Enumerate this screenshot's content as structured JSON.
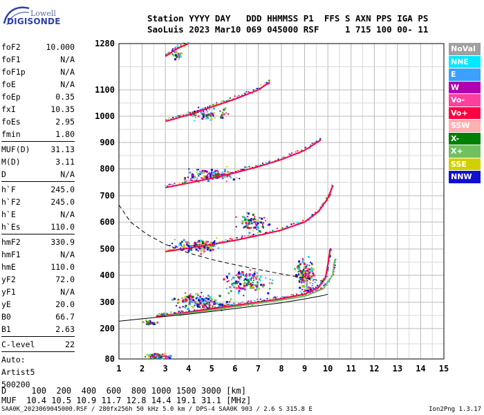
{
  "logo": {
    "line1": "Lowell",
    "line2": "DIGISONDE"
  },
  "header": {
    "row1": "Station YYYY DAY   DDD HHMMSS P1  FFS S AXN PPS IGA PS",
    "row2": "SaoLuis 2023 Mar10 069 045000 RSF     1 715 100 00- 11"
  },
  "params": [
    {
      "group": [
        {
          "name": "foF2",
          "value": "10.000"
        },
        {
          "name": "foF1",
          "value": "N/A"
        },
        {
          "name": "foF1p",
          "value": "N/A"
        },
        {
          "name": "foE",
          "value": "N/A"
        },
        {
          "name": "foEp",
          "value": "0.35"
        },
        {
          "name": "fxI",
          "value": "10.35"
        },
        {
          "name": "foEs",
          "value": "2.95"
        },
        {
          "name": "fmin",
          "value": "1.80"
        }
      ]
    },
    {
      "group": [
        {
          "name": "MUF(D)",
          "value": "31.13"
        },
        {
          "name": "M(D)",
          "value": "3.11"
        },
        {
          "name": "D",
          "value": "N/A"
        }
      ]
    },
    {
      "group": [
        {
          "name": "h`F",
          "value": "245.0"
        },
        {
          "name": "h`F2",
          "value": "245.0"
        },
        {
          "name": "h`E",
          "value": "N/A"
        },
        {
          "name": "h`Es",
          "value": "110.0"
        }
      ]
    },
    {
      "group": [
        {
          "name": "hmF2",
          "value": "330.9"
        },
        {
          "name": "hmF1",
          "value": "N/A"
        },
        {
          "name": "hmE",
          "value": "110.0"
        },
        {
          "name": "yF2",
          "value": "72.0"
        },
        {
          "name": "yF1",
          "value": "N/A"
        },
        {
          "name": "yE",
          "value": "20.0"
        },
        {
          "name": "B0",
          "value": "66.7"
        },
        {
          "name": "B1",
          "value": "2.63"
        }
      ]
    },
    {
      "group": [
        {
          "name": "C-level",
          "value": "22"
        }
      ]
    }
  ],
  "auto": {
    "line1": "Auto:",
    "line2": "Artist5",
    "line3": "500200"
  },
  "legend": [
    {
      "label": "NoVal",
      "color": "#a0a0a0"
    },
    {
      "label": "NNE",
      "color": "#00e8ff"
    },
    {
      "label": "E",
      "color": "#3ca0ff"
    },
    {
      "label": "W",
      "color": "#b000b0"
    },
    {
      "label": "Vo-",
      "color": "#ff40a0"
    },
    {
      "label": "Vo+",
      "color": "#ff0040"
    },
    {
      "label": "SSW",
      "color": "#ffb0b0"
    },
    {
      "label": "X-",
      "color": "#008000"
    },
    {
      "label": "X+",
      "color": "#70c060"
    },
    {
      "label": "SSE",
      "color": "#d0d000"
    },
    {
      "label": "NNW",
      "color": "#1010d0"
    }
  ],
  "muf": {
    "row1": "D     100  200  400  600  800 1000 1500 3000 [km]",
    "row2": "MUF  10.4 10.5 10.9 11.7 12.8 14.4 19.1 31.1 [MHz]"
  },
  "footer": "SAA0K_2023069045000.RSF / 280fx256h 50 kHz 5.0 km / DPS-4 SAA0K 903 / 2.6 S 315.8 E",
  "version": "Ion2Png 1.3.17",
  "chart_data": {
    "type": "scatter",
    "xlabel": "",
    "ylabel": "",
    "xlim": [
      1,
      15
    ],
    "ylim": [
      80,
      1280
    ],
    "x_ticks": [
      1,
      2,
      3,
      4,
      5,
      6,
      7,
      8,
      9,
      10,
      11,
      12,
      13,
      14,
      15
    ],
    "y_ticks": [
      80,
      200,
      300,
      400,
      500,
      600,
      700,
      800,
      900,
      1000,
      1100,
      1280
    ],
    "grid": true,
    "traces": [
      {
        "name": "",
        "color": "#ff0040",
        "points": [
          [
            2.6,
            245
          ],
          [
            3,
            250
          ],
          [
            4,
            262
          ],
          [
            5,
            275
          ],
          [
            6,
            288
          ],
          [
            7,
            300
          ],
          [
            8,
            313
          ],
          [
            9,
            330
          ],
          [
            9.6,
            355
          ],
          [
            9.9,
            390
          ],
          [
            10,
            440
          ],
          [
            10.1,
            500
          ]
        ]
      },
      {
        "name": "",
        "color": "#70c060",
        "points": [
          [
            3,
            248
          ],
          [
            4,
            258
          ],
          [
            5,
            270
          ],
          [
            6,
            283
          ],
          [
            7,
            296
          ],
          [
            8,
            308
          ],
          [
            9,
            322
          ],
          [
            9.8,
            350
          ],
          [
            10.2,
            400
          ],
          [
            10.3,
            460
          ]
        ]
      },
      {
        "name": "",
        "color": "#000000",
        "points": [
          [
            1,
            228
          ],
          [
            2,
            237
          ],
          [
            3,
            246
          ],
          [
            4,
            255
          ],
          [
            5,
            265
          ],
          [
            6,
            276
          ],
          [
            7,
            287
          ],
          [
            8,
            298
          ],
          [
            9,
            312
          ],
          [
            9.8,
            325
          ],
          [
            10,
            330
          ]
        ]
      },
      {
        "name": "",
        "color": "#000000",
        "dash": true,
        "points": [
          [
            1,
            665
          ],
          [
            1.5,
            600
          ],
          [
            2.2,
            555
          ],
          [
            3,
            517
          ],
          [
            4,
            485
          ],
          [
            5,
            460
          ],
          [
            6,
            440
          ],
          [
            7,
            422
          ],
          [
            8,
            405
          ],
          [
            9,
            390
          ],
          [
            9.8,
            378
          ]
        ]
      },
      {
        "name": "",
        "color": "#ff0040",
        "points": [
          [
            3,
            490
          ],
          [
            4,
            503
          ],
          [
            5,
            517
          ],
          [
            6,
            532
          ],
          [
            7,
            550
          ],
          [
            8,
            570
          ],
          [
            9,
            600
          ],
          [
            9.6,
            640
          ],
          [
            10,
            690
          ],
          [
            10.2,
            735
          ]
        ]
      },
      {
        "name": "",
        "color": "#ff0040",
        "points": [
          [
            3,
            730
          ],
          [
            4,
            747
          ],
          [
            5,
            765
          ],
          [
            6,
            785
          ],
          [
            7,
            808
          ],
          [
            8,
            835
          ],
          [
            9,
            870
          ],
          [
            9.7,
            910
          ]
        ]
      },
      {
        "name": "",
        "color": "#ff0040",
        "points": [
          [
            3,
            980
          ],
          [
            4,
            1005
          ],
          [
            5,
            1035
          ],
          [
            6,
            1065
          ],
          [
            7,
            1100
          ],
          [
            7.5,
            1130
          ]
        ]
      },
      {
        "name": "",
        "color": "#ff0040",
        "points": [
          [
            3,
            1230
          ],
          [
            3.5,
            1260
          ],
          [
            4,
            1280
          ]
        ]
      }
    ],
    "scatter_clusters": [
      {
        "center": [
          2.7,
          95
        ],
        "spread": [
          0.7,
          15
        ],
        "n": 90
      },
      {
        "center": [
          2.3,
          225
        ],
        "spread": [
          0.4,
          12
        ],
        "n": 40
      },
      {
        "center": [
          4.5,
          305
        ],
        "spread": [
          1.6,
          45
        ],
        "n": 160
      },
      {
        "center": [
          6.5,
          380
        ],
        "spread": [
          1.3,
          60
        ],
        "n": 140
      },
      {
        "center": [
          9.0,
          400
        ],
        "spread": [
          0.6,
          90
        ],
        "n": 170
      },
      {
        "center": [
          4.3,
          515
        ],
        "spread": [
          1.4,
          35
        ],
        "n": 110
      },
      {
        "center": [
          6.7,
          600
        ],
        "spread": [
          0.9,
          45
        ],
        "n": 80
      },
      {
        "center": [
          5.0,
          780
        ],
        "spread": [
          1.6,
          35
        ],
        "n": 110
      },
      {
        "center": [
          4.8,
          1010
        ],
        "spread": [
          1.5,
          30
        ],
        "n": 70
      },
      {
        "center": [
          3.5,
          1240
        ],
        "spread": [
          0.4,
          25
        ],
        "n": 25
      }
    ]
  }
}
